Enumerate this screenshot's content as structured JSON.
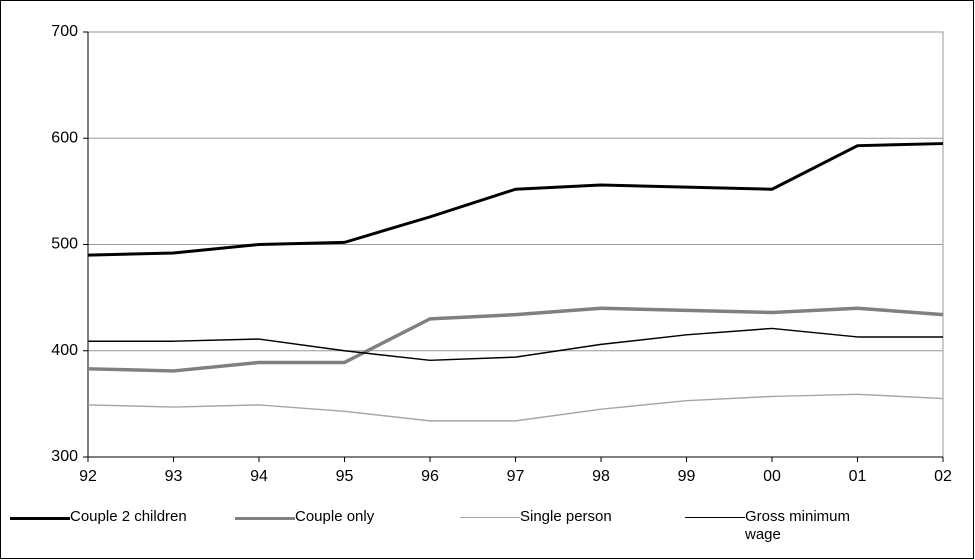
{
  "chart_data": {
    "type": "line",
    "categories": [
      "92",
      "93",
      "94",
      "95",
      "96",
      "97",
      "98",
      "99",
      "00",
      "01",
      "02"
    ],
    "series": [
      {
        "name": "Couple 2 children",
        "color": "#000000",
        "line_width": 3,
        "values": [
          490,
          492,
          500,
          502,
          526,
          552,
          556,
          554,
          552,
          593,
          595
        ]
      },
      {
        "name": "Couple only",
        "color": "#808080",
        "line_width": 3.5,
        "values": [
          383,
          381,
          389,
          389,
          430,
          434,
          440,
          438,
          436,
          440,
          434
        ]
      },
      {
        "name": "Single person",
        "color": "#a6a6a6",
        "line_width": 1.5,
        "values": [
          349,
          347,
          349,
          343,
          334,
          334,
          345,
          353,
          357,
          359,
          355
        ]
      },
      {
        "name": "Gross minimum wage",
        "color": "#000000",
        "line_width": 1.5,
        "values": [
          409,
          409,
          411,
          400,
          391,
          394,
          406,
          415,
          421,
          413,
          413
        ]
      }
    ],
    "ylim": [
      300,
      700
    ],
    "yticks": [
      300,
      400,
      500,
      600,
      700
    ],
    "grid": true
  }
}
